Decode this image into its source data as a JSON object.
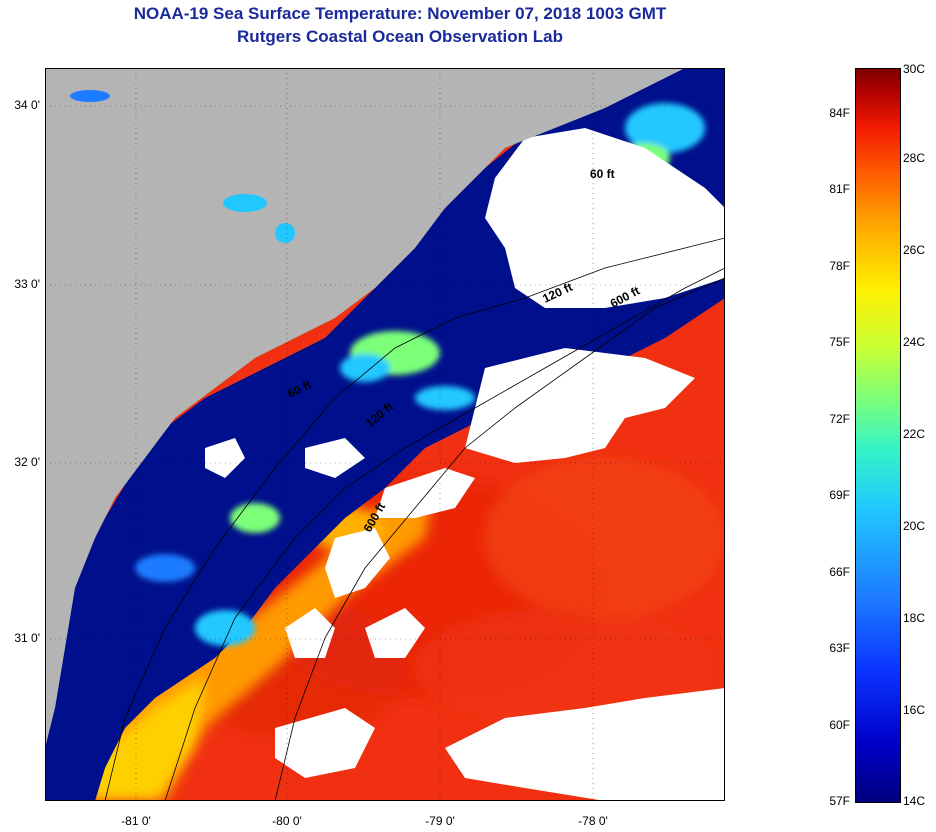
{
  "header": {
    "title": "NOAA-19 Sea Surface Temperature:  November 07, 2018 1003 GMT",
    "subtitle": "Rutgers Coastal Ocean Observation Lab"
  },
  "map": {
    "lat_labels": [
      "34 0'",
      "33 0'",
      "32 0'",
      "31 0'"
    ],
    "lon_labels": [
      "-81 0'",
      "-80 0'",
      "-79 0'",
      "-78 0'"
    ],
    "contour_labels": [
      "60 ft",
      "120 ft",
      "600 ft",
      "60 ft",
      "120 ft",
      "600 ft"
    ],
    "colors": {
      "land": "#b4b4b4",
      "cloud": "#ffffff",
      "cold_water": "#00108c",
      "warm_water": "#f03010"
    }
  },
  "colorbar": {
    "f_labels": [
      "84F",
      "81F",
      "78F",
      "75F",
      "72F",
      "69F",
      "66F",
      "63F",
      "60F",
      "57F"
    ],
    "c_labels": [
      "30C",
      "28C",
      "26C",
      "24C",
      "22C",
      "20C",
      "18C",
      "16C",
      "14C"
    ],
    "colors": [
      "#00007f",
      "#0000c8",
      "#1d7cff",
      "#20c8ff",
      "#7cff79",
      "#fff000",
      "#ff5a00",
      "#b00000",
      "#7f0000"
    ]
  }
}
